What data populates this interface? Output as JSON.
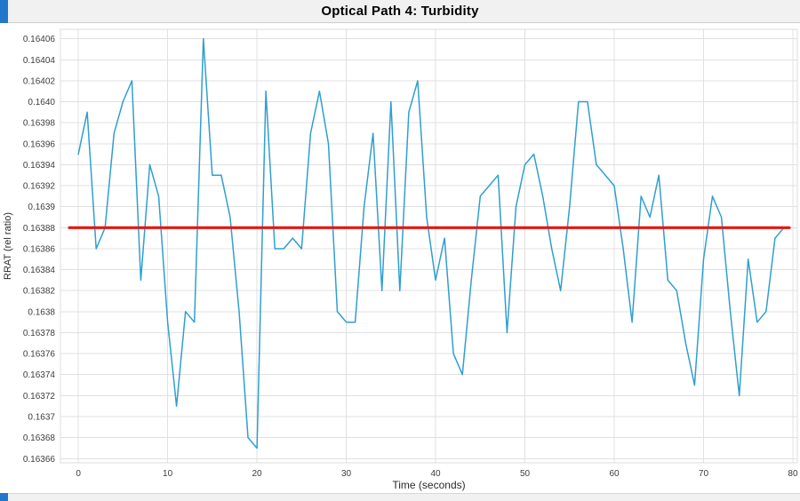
{
  "title": "Optical Path 4: Turbidity",
  "colors": {
    "series": "#2f9fd0",
    "mean_line": "#e8150f",
    "grid": "#e0e0e0",
    "plot_border": "#dcdcdc",
    "header_bg": "#f1f1f1",
    "corner_accent": "#2277cc",
    "text": "#2b2b2b"
  },
  "chart_data": {
    "type": "line",
    "title": "Optical Path 4: Turbidity",
    "xlabel": "Time (seconds)",
    "ylabel": "RRAT (rel ratio)",
    "xlim": [
      -2,
      80.5
    ],
    "ylim": [
      0.163656,
      0.164069
    ],
    "grid": true,
    "legend": "none",
    "x_ticks": [
      {
        "v": 0,
        "label": "0"
      },
      {
        "v": 10,
        "label": "10"
      },
      {
        "v": 20,
        "label": "20"
      },
      {
        "v": 30,
        "label": "30"
      },
      {
        "v": 40,
        "label": "40"
      },
      {
        "v": 50,
        "label": "50"
      },
      {
        "v": 60,
        "label": "60"
      },
      {
        "v": 70,
        "label": "70"
      },
      {
        "v": 80,
        "label": "80"
      }
    ],
    "y_ticks": [
      {
        "v": 0.16366,
        "label": "0.16366"
      },
      {
        "v": 0.16368,
        "label": "0.16368"
      },
      {
        "v": 0.1637,
        "label": "0.1637"
      },
      {
        "v": 0.16372,
        "label": "0.16372"
      },
      {
        "v": 0.16374,
        "label": "0.16374"
      },
      {
        "v": 0.16376,
        "label": "0.16376"
      },
      {
        "v": 0.16378,
        "label": "0.16378"
      },
      {
        "v": 0.1638,
        "label": "0.1638"
      },
      {
        "v": 0.16382,
        "label": "0.16382"
      },
      {
        "v": 0.16384,
        "label": "0.16384"
      },
      {
        "v": 0.16386,
        "label": "0.16386"
      },
      {
        "v": 0.16388,
        "label": "0.16388"
      },
      {
        "v": 0.1639,
        "label": "0.1639"
      },
      {
        "v": 0.16392,
        "label": "0.16392"
      },
      {
        "v": 0.16394,
        "label": "0.16394"
      },
      {
        "v": 0.16396,
        "label": "0.16396"
      },
      {
        "v": 0.16398,
        "label": "0.16398"
      },
      {
        "v": 0.164,
        "label": "0.1640"
      },
      {
        "v": 0.16402,
        "label": "0.16402"
      },
      {
        "v": 0.16404,
        "label": "0.16404"
      },
      {
        "v": 0.16406,
        "label": "0.16406"
      }
    ],
    "series": [
      {
        "name": "turbidity-rrat",
        "color": "#2f9fd0",
        "x": [
          0,
          1,
          2,
          3,
          4,
          5,
          6,
          7,
          8,
          9,
          10,
          11,
          12,
          13,
          14,
          15,
          16,
          17,
          18,
          19,
          20,
          21,
          22,
          23,
          24,
          25,
          26,
          27,
          28,
          29,
          30,
          31,
          32,
          33,
          34,
          35,
          36,
          37,
          38,
          39,
          40,
          41,
          42,
          43,
          44,
          45,
          46,
          47,
          48,
          49,
          50,
          51,
          52,
          53,
          54,
          55,
          56,
          57,
          58,
          59,
          60,
          61,
          62,
          63,
          64,
          65,
          66,
          67,
          68,
          69,
          70,
          71,
          72,
          73,
          74,
          75,
          76,
          77,
          78,
          79
        ],
        "y": [
          0.16395,
          0.16399,
          0.16386,
          0.16388,
          0.16397,
          0.164,
          0.16402,
          0.16383,
          0.16394,
          0.16391,
          0.16379,
          0.16371,
          0.1638,
          0.16379,
          0.16406,
          0.16393,
          0.16393,
          0.16389,
          0.1638,
          0.16368,
          0.16367,
          0.16401,
          0.16386,
          0.16386,
          0.16387,
          0.16386,
          0.16397,
          0.16401,
          0.16396,
          0.1638,
          0.16379,
          0.16379,
          0.1639,
          0.16397,
          0.16382,
          0.164,
          0.16382,
          0.16399,
          0.16402,
          0.16389,
          0.16383,
          0.16387,
          0.16376,
          0.16374,
          0.16383,
          0.16391,
          0.16392,
          0.16393,
          0.16378,
          0.1639,
          0.16394,
          0.16395,
          0.16391,
          0.16386,
          0.16382,
          0.1639,
          0.164,
          0.164,
          0.16394,
          0.16393,
          0.16392,
          0.16386,
          0.16379,
          0.16391,
          0.16389,
          0.16393,
          0.16383,
          0.16382,
          0.16377,
          0.16373,
          0.16385,
          0.16391,
          0.16389,
          0.1638,
          0.16372,
          0.16385,
          0.16379,
          0.1638,
          0.16387,
          0.16388
        ]
      }
    ],
    "mean_line": {
      "name": "mean-reference-line",
      "y": 0.16388,
      "x_start": -1,
      "x_end": 79.6,
      "color": "#e8150f",
      "width": 3.2
    }
  }
}
